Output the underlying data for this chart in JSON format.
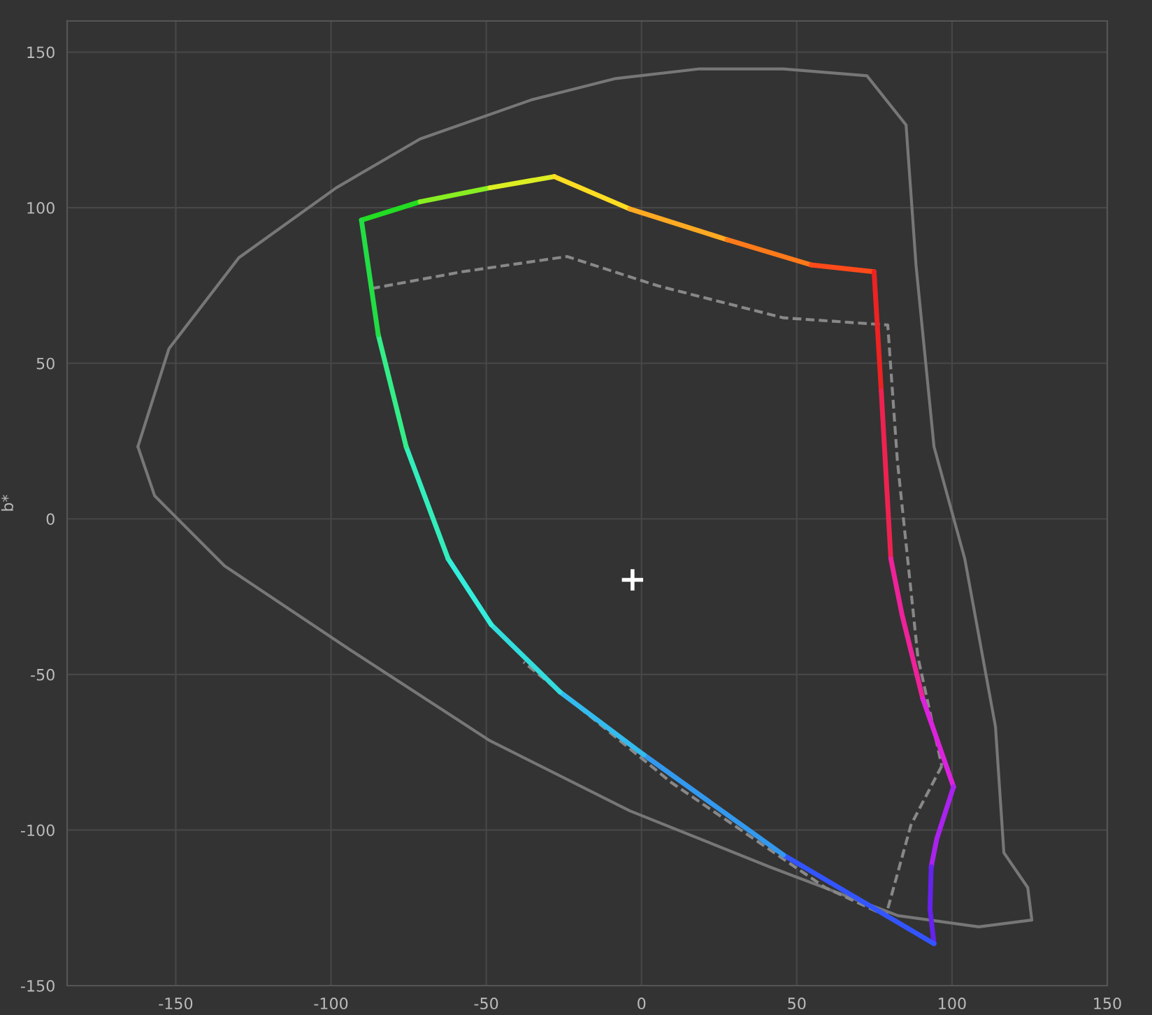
{
  "chart_data": {
    "type": "line",
    "ylabel": "b*",
    "xlim": [
      -185,
      150
    ],
    "ylim": [
      -150,
      160
    ],
    "xticks": [
      -150,
      -100,
      -50,
      0,
      50,
      100,
      150
    ],
    "yticks": [
      -150,
      -100,
      -50,
      0,
      50,
      100,
      150
    ],
    "grid": true,
    "series": [
      {
        "color": "#777777",
        "x": [
          -162.2,
          -156.8,
          -134.3,
          -93.8,
          -48.8,
          -3.8,
          41.2,
          82.6,
          108.6,
          125.7
        ],
        "values": [
          23.2,
          7.4,
          -15.1,
          -42.1,
          -71.3,
          -93.8,
          -111.8,
          -127.5,
          -131.1,
          -128.9
        ]
      },
      {
        "color": "#777777",
        "x": [
          125.7,
          124.4,
          116.7,
          114,
          104.1,
          94.2,
          88.4,
          85.2,
          72.6,
          45.7,
          18.7,
          -8.3,
          -35.3,
          -71.3,
          -98.3,
          -129.7,
          -152.2,
          -162.2
        ],
        "values": [
          -128.9,
          -118.5,
          -107.3,
          -66.8,
          -12.8,
          23.2,
          81.6,
          126.6,
          142.4,
          144.6,
          144.6,
          141.5,
          134.7,
          122.1,
          106.4,
          83.9,
          54.7,
          23.2
        ]
      },
      {
        "color": "#888888",
        "line_style": "dashed",
        "x": [
          -87,
          -57.8,
          -24,
          5.2,
          45.7,
          79.3,
          82.4,
          89,
          96.7
        ],
        "values": [
          74,
          79.4,
          84.3,
          74.9,
          64.6,
          62.3,
          18.7,
          -44.3,
          -79.4
        ]
      },
      {
        "color": "#888888",
        "line_style": "dashed",
        "x": [
          96.7,
          86.8,
          78.7,
          59.2,
          9.7,
          -38
        ],
        "values": [
          -79.4,
          -98.3,
          -127.5,
          -118.5,
          -84.8,
          -46
        ]
      },
      {
        "color": "#22dd22",
        "x": [
          -90.2,
          -71.3
        ],
        "values": [
          96,
          101.9
        ]
      },
      {
        "color": "#88ee22",
        "x": [
          -71.3,
          -48.8
        ],
        "values": [
          101.9,
          106.4
        ]
      },
      {
        "color": "#ddee22",
        "x": [
          -48.8,
          -28.1
        ],
        "values": [
          106.4,
          110
        ]
      },
      {
        "color": "#ffdd22",
        "x": [
          -28.1,
          -3.8
        ],
        "values": [
          110,
          99.6
        ]
      },
      {
        "color": "#ffaa22",
        "x": [
          -3.8,
          27.6
        ],
        "values": [
          99.6,
          89.7
        ]
      },
      {
        "color": "#ff7a1a",
        "x": [
          27.6,
          54.7
        ],
        "values": [
          89.7,
          81.6
        ]
      },
      {
        "color": "#ff4a1a",
        "x": [
          54.7,
          74.9
        ],
        "values": [
          81.6,
          79.4
        ]
      },
      {
        "color": "#ee2222",
        "x": [
          74.9,
          77.2
        ],
        "values": [
          79.4,
          41.2
        ]
      },
      {
        "color": "#ee2250",
        "x": [
          77.2,
          80.3
        ],
        "values": [
          41.2,
          -12.8
        ]
      },
      {
        "color": "#ee2299",
        "x": [
          80.3,
          83.9,
          90.6
        ],
        "values": [
          -12.8,
          -30.8,
          -57.8
        ]
      },
      {
        "color": "#dd22dd",
        "x": [
          90.6,
          100.5
        ],
        "values": [
          -57.8,
          -86.1
        ]
      },
      {
        "color": "#aa22ee",
        "x": [
          100.5,
          95.1,
          93.3
        ],
        "values": [
          -86.1,
          -102.8,
          -111.8
        ]
      },
      {
        "color": "#6622ee",
        "x": [
          93.3,
          92.9,
          94.2
        ],
        "values": [
          -111.8,
          -125.3,
          -136.5
        ]
      },
      {
        "color": "#3355ff",
        "x": [
          94.2,
          45.7
        ],
        "values": [
          -136.5,
          -108
        ]
      },
      {
        "color": "#3399ee",
        "x": [
          45.7,
          0.7
        ],
        "values": [
          -108,
          -75.8
        ]
      },
      {
        "color": "#33bbee",
        "x": [
          0.7,
          -26.3
        ],
        "values": [
          -75.8,
          -55.6
        ]
      },
      {
        "color": "#33dddd",
        "x": [
          -26.3,
          -48.4
        ],
        "values": [
          -55.6,
          -34
        ]
      },
      {
        "color": "#33eedd",
        "x": [
          -48.4,
          -62.3
        ],
        "values": [
          -34,
          -12.8
        ]
      },
      {
        "color": "#33eebb",
        "x": [
          -62.3,
          -75.8
        ],
        "values": [
          -12.8,
          23.2
        ]
      },
      {
        "color": "#33ee88",
        "x": [
          -75.8,
          -84.8
        ],
        "values": [
          23.2,
          59.2
        ]
      },
      {
        "color": "#22dd44",
        "x": [
          -84.8,
          -90.2
        ],
        "values": [
          59.2,
          96
        ]
      },
      {
        "type": "scatter",
        "marker": "cross",
        "color": "#ffffff",
        "x": [
          -2.9
        ],
        "values": [
          -19.6
        ]
      }
    ]
  }
}
